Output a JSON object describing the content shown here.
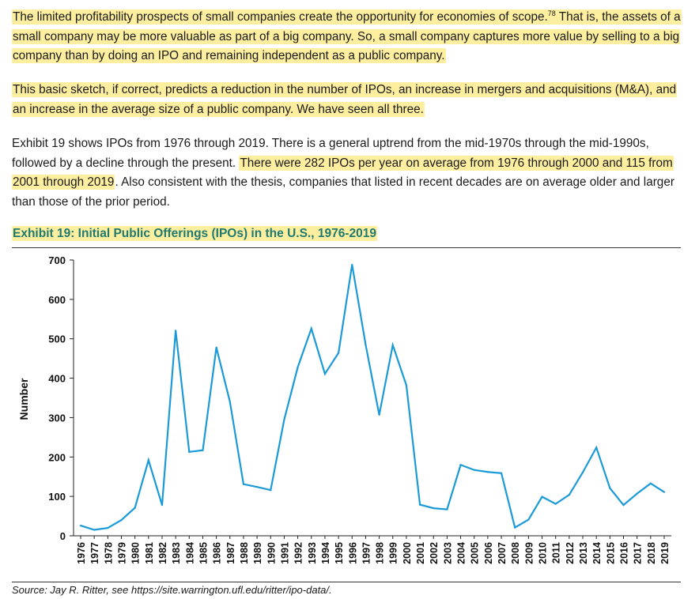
{
  "paragraphs": {
    "p1": {
      "text_hl_a": "The limited profitability prospects of small companies create the opportunity for economies of scope.",
      "footnote": "78",
      "text_hl_b": " That is, the assets of a small company may be more valuable as part of a big company. So, a small company captures more value by selling to a big company than by doing an IPO and remaining independent as a public company."
    },
    "p2": {
      "text_hl": "This basic sketch, if correct, predicts a reduction in the number of IPOs, an increase in mergers and acquisitions (M&A), and an increase in the average size of a public company. We have seen all three."
    },
    "p3": {
      "text_a": "Exhibit 19 shows IPOs from 1976 through 2019. There is a general uptrend from the mid-1970s through the mid-1990s, followed by a decline through the present. ",
      "text_hl": "There were 282 IPOs per year on average from 1976 through 2000 and 115 from 2001 through 2019",
      "text_b": ". Also consistent with the thesis, companies that listed in recent decades are on average older and larger than those of the prior period."
    }
  },
  "exhibit": {
    "title": "Exhibit 19: Initial Public Offerings (IPOs) in the U.S., 1976-2019",
    "source": "Source: Jay R. Ritter, see https://site.warrington.ufl.edu/ritter/ipo-data/."
  },
  "colors": {
    "line": "#1a9ad6",
    "highlight": "#fdeea0",
    "title": "#1f7a70"
  },
  "chart_data": {
    "type": "line",
    "title": "Exhibit 19: Initial Public Offerings (IPOs) in the U.S., 1976-2019",
    "xlabel": "",
    "ylabel": "Number",
    "ylim": [
      0,
      700
    ],
    "yticks": [
      0,
      100,
      200,
      300,
      400,
      500,
      600,
      700
    ],
    "grid": false,
    "categories": [
      "1976",
      "1977",
      "1978",
      "1979",
      "1980",
      "1981",
      "1982",
      "1983",
      "1984",
      "1985",
      "1986",
      "1987",
      "1988",
      "1989",
      "1990",
      "1991",
      "1992",
      "1993",
      "1994",
      "1995",
      "1996",
      "1997",
      "1998",
      "1999",
      "2000",
      "2001",
      "2002",
      "2003",
      "2004",
      "2005",
      "2006",
      "2007",
      "2008",
      "2009",
      "2010",
      "2011",
      "2012",
      "2013",
      "2014",
      "2015",
      "2016",
      "2017",
      "2018",
      "2019"
    ],
    "series": [
      {
        "name": "IPOs",
        "values": [
          26,
          15,
          20,
          40,
          71,
          192,
          78,
          521,
          213,
          217,
          478,
          340,
          131,
          124,
          116,
          295,
          428,
          526,
          411,
          464,
          688,
          485,
          307,
          484,
          382,
          79,
          70,
          67,
          180,
          167,
          162,
          159,
          21,
          41,
          99,
          81,
          104,
          161,
          224,
          121,
          78,
          107,
          133,
          111
        ]
      }
    ]
  }
}
